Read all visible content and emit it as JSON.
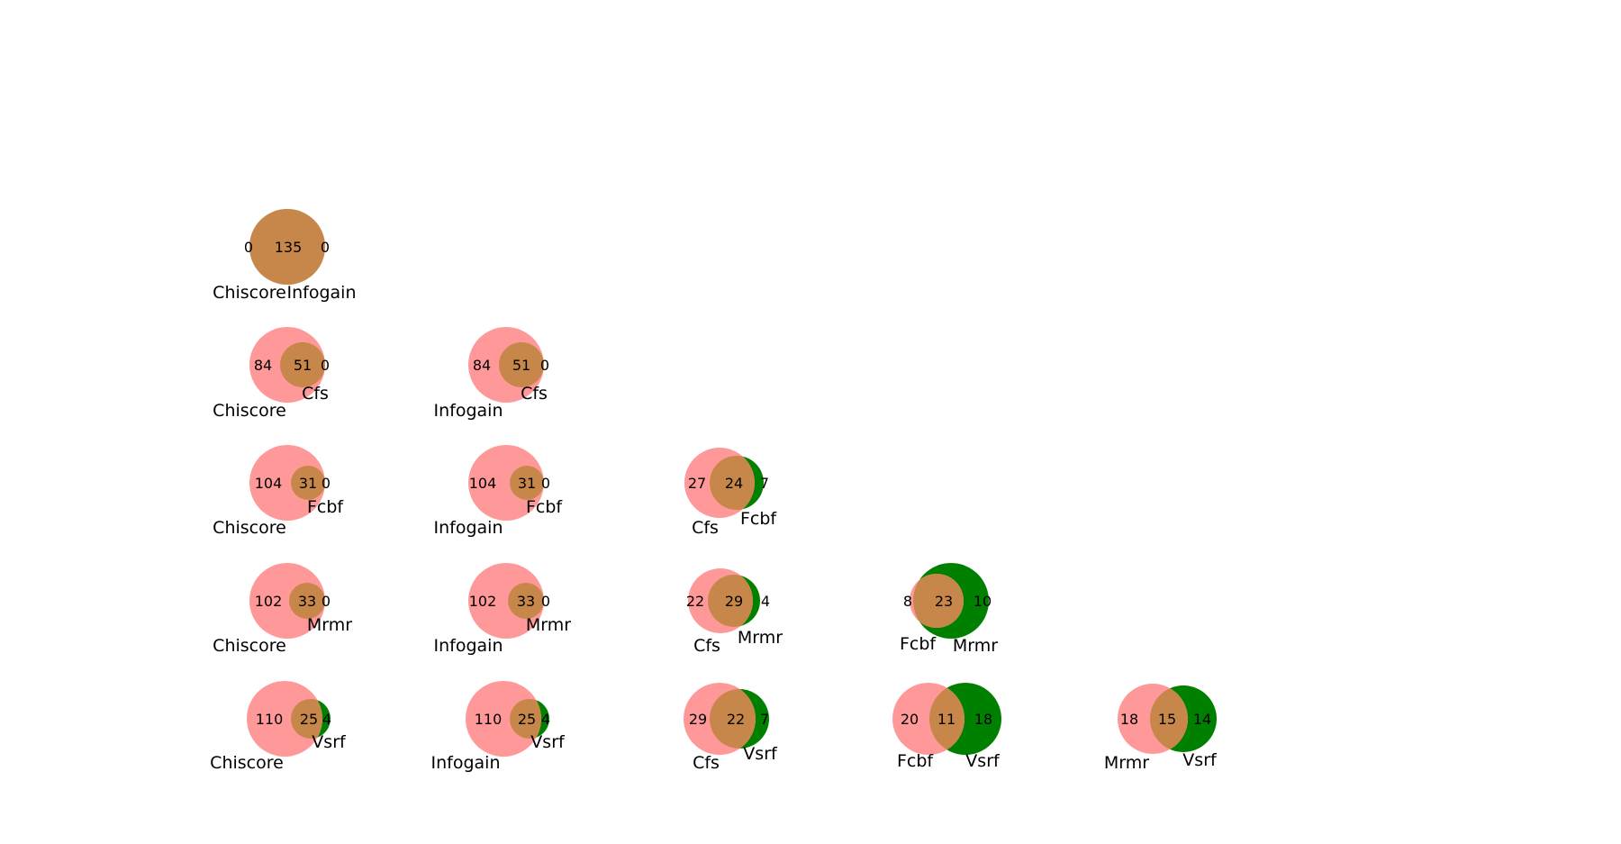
{
  "colors": {
    "left_only": "#ff9999",
    "right_only": "#008000",
    "overlap": "#c8874a",
    "text": "#000000"
  },
  "diagrams": [
    {
      "left_set": "Chiscore",
      "right_set": "Infogain",
      "left_only": "0",
      "overlap": "135",
      "right_only": "0"
    },
    {
      "left_set": "Chiscore",
      "right_set": "Cfs",
      "left_only": "84",
      "overlap": "51",
      "right_only": "0"
    },
    {
      "left_set": "Infogain",
      "right_set": "Cfs",
      "left_only": "84",
      "overlap": "51",
      "right_only": "0"
    },
    {
      "left_set": "Chiscore",
      "right_set": "Fcbf",
      "left_only": "104",
      "overlap": "31",
      "right_only": "0"
    },
    {
      "left_set": "Infogain",
      "right_set": "Fcbf",
      "left_only": "104",
      "overlap": "31",
      "right_only": "0"
    },
    {
      "left_set": "Cfs",
      "right_set": "Fcbf",
      "left_only": "27",
      "overlap": "24",
      "right_only": "7"
    },
    {
      "left_set": "Chiscore",
      "right_set": "Mrmr",
      "left_only": "102",
      "overlap": "33",
      "right_only": "0"
    },
    {
      "left_set": "Infogain",
      "right_set": "Mrmr",
      "left_only": "102",
      "overlap": "33",
      "right_only": "0"
    },
    {
      "left_set": "Cfs",
      "right_set": "Mrmr",
      "left_only": "22",
      "overlap": "29",
      "right_only": "4"
    },
    {
      "left_set": "Fcbf",
      "right_set": "Mrmr",
      "left_only": "8",
      "overlap": "23",
      "right_only": "10"
    },
    {
      "left_set": "Chiscore",
      "right_set": "Vsrf",
      "left_only": "110",
      "overlap": "25",
      "right_only": "4"
    },
    {
      "left_set": "Infogain",
      "right_set": "Vsrf",
      "left_only": "110",
      "overlap": "25",
      "right_only": "4"
    },
    {
      "left_set": "Cfs",
      "right_set": "Vsrf",
      "left_only": "29",
      "overlap": "22",
      "right_only": "7"
    },
    {
      "left_set": "Fcbf",
      "right_set": "Vsrf",
      "left_only": "20",
      "overlap": "11",
      "right_only": "18"
    },
    {
      "left_set": "Mrmr",
      "right_set": "Vsrf",
      "left_only": "18",
      "overlap": "15",
      "right_only": "14"
    }
  ]
}
